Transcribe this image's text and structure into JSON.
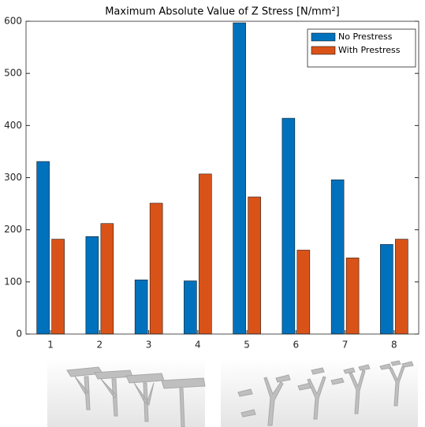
{
  "chart_data": {
    "type": "bar",
    "title": "Maximum Absolute Value of Z Stress [N/mm²]",
    "categories": [
      "1",
      "2",
      "3",
      "4",
      "5",
      "6",
      "7",
      "8"
    ],
    "series": [
      {
        "name": "No Prestress",
        "color": "#0072bd",
        "values": [
          331,
          187,
          104,
          102,
          597,
          414,
          296,
          172
        ]
      },
      {
        "name": "With Prestress",
        "color": "#d95319",
        "values": [
          182,
          212,
          251,
          307,
          263,
          161,
          146,
          182
        ]
      }
    ],
    "ylim": [
      0,
      600
    ],
    "yticks": [
      0,
      100,
      200,
      300,
      400,
      500,
      600
    ],
    "legend": "top-right"
  }
}
